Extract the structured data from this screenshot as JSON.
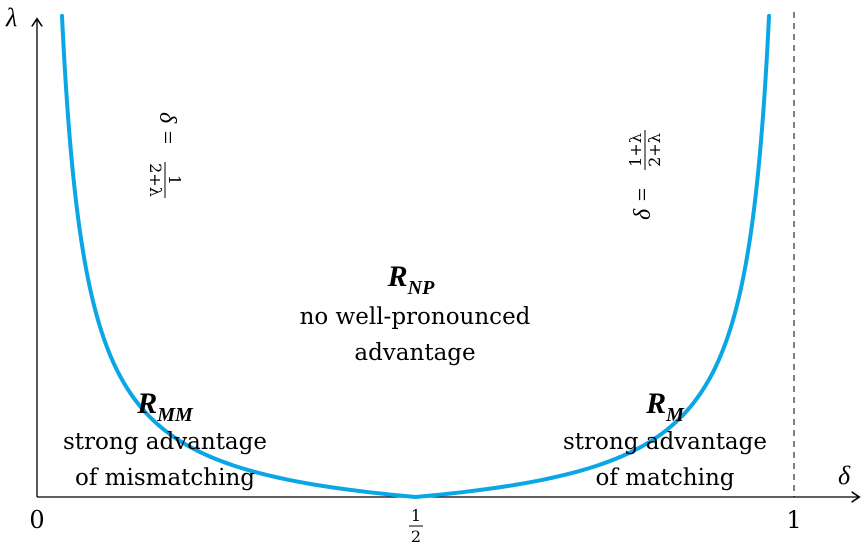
{
  "axes": {
    "y_label": "λ",
    "x_label": "δ",
    "x_ticks": {
      "zero": "0",
      "half_num": "1",
      "half_den": "2",
      "one": "1"
    }
  },
  "curves": {
    "left_label": {
      "lhs": "δ =",
      "num": "1",
      "den": "2+λ"
    },
    "right_label": {
      "lhs": "δ =",
      "num": "1+λ",
      "den": "2+λ"
    },
    "color": "#0aa6e6"
  },
  "regions": {
    "np": {
      "title_main": "R",
      "title_sub": "NP",
      "line1": "no well-pronounced",
      "line2": "advantage"
    },
    "mm": {
      "title_main": "R",
      "title_sub": "MM",
      "line1": "strong advantage",
      "line2": "of mismatching"
    },
    "m": {
      "title_main": "R",
      "title_sub": "M",
      "line1": "strong advantage",
      "line2": "of matching"
    }
  }
}
